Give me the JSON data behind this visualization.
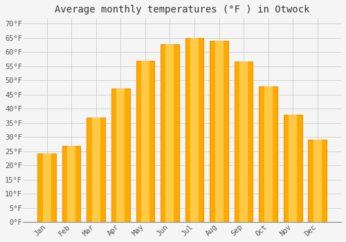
{
  "title": "Average monthly temperatures (°F ) in Otwock",
  "months": [
    "Jan",
    "Feb",
    "Mar",
    "Apr",
    "May",
    "Jun",
    "Jul",
    "Aug",
    "Sep",
    "Oct",
    "Nov",
    "Dec"
  ],
  "values": [
    24.3,
    27.0,
    36.9,
    47.1,
    57.0,
    62.8,
    65.1,
    63.9,
    56.8,
    47.8,
    37.9,
    29.1
  ],
  "bar_color_main": "#FFAA00",
  "bar_color_light": "#FFD966",
  "bar_edge_color": "#E8960A",
  "background_color": "#F5F5F5",
  "plot_bg_color": "#F5F5F5",
  "grid_color": "#CCCCCC",
  "yticks": [
    0,
    5,
    10,
    15,
    20,
    25,
    30,
    35,
    40,
    45,
    50,
    55,
    60,
    65,
    70
  ],
  "ylim": [
    0,
    72
  ],
  "title_fontsize": 10,
  "tick_fontsize": 7.5,
  "tick_color": "#555555",
  "spine_color": "#888888"
}
